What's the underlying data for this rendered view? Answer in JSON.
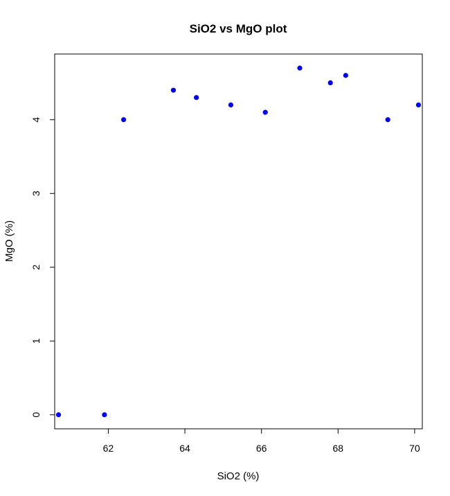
{
  "chart_data": {
    "type": "scatter",
    "title": "SiO2 vs MgO plot",
    "xlabel": "SiO2 (%)",
    "ylabel": "MgO (%)",
    "xlim": [
      60.6,
      70.2
    ],
    "ylim": [
      -0.19,
      4.89
    ],
    "xticks": [
      62,
      64,
      66,
      68,
      70
    ],
    "yticks": [
      0,
      1,
      2,
      3,
      4
    ],
    "grid": false,
    "point_color": "#0000ff",
    "points": [
      {
        "x": 60.7,
        "y": 0.0
      },
      {
        "x": 61.9,
        "y": 0.0
      },
      {
        "x": 62.4,
        "y": 4.0
      },
      {
        "x": 63.7,
        "y": 4.4
      },
      {
        "x": 64.3,
        "y": 4.3
      },
      {
        "x": 65.2,
        "y": 4.2
      },
      {
        "x": 66.1,
        "y": 4.1
      },
      {
        "x": 67.0,
        "y": 4.7
      },
      {
        "x": 67.8,
        "y": 4.5
      },
      {
        "x": 68.2,
        "y": 4.6
      },
      {
        "x": 69.3,
        "y": 4.0
      },
      {
        "x": 70.1,
        "y": 4.2
      }
    ]
  }
}
